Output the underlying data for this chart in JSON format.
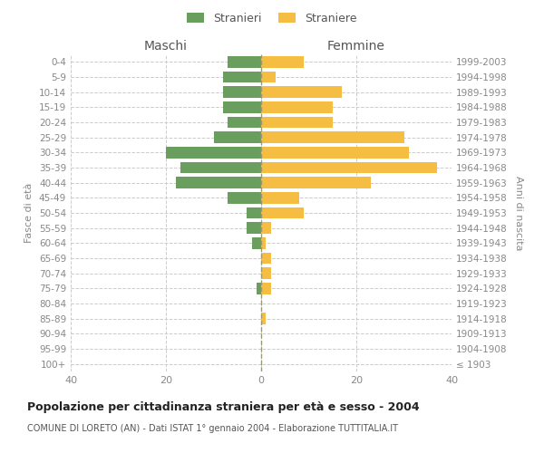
{
  "age_groups": [
    "100+",
    "95-99",
    "90-94",
    "85-89",
    "80-84",
    "75-79",
    "70-74",
    "65-69",
    "60-64",
    "55-59",
    "50-54",
    "45-49",
    "40-44",
    "35-39",
    "30-34",
    "25-29",
    "20-24",
    "15-19",
    "10-14",
    "5-9",
    "0-4"
  ],
  "birth_years": [
    "≤ 1903",
    "1904-1908",
    "1909-1913",
    "1914-1918",
    "1919-1923",
    "1924-1928",
    "1929-1933",
    "1934-1938",
    "1939-1943",
    "1944-1948",
    "1949-1953",
    "1954-1958",
    "1959-1963",
    "1964-1968",
    "1969-1973",
    "1974-1978",
    "1979-1983",
    "1984-1988",
    "1989-1993",
    "1994-1998",
    "1999-2003"
  ],
  "males": [
    0,
    0,
    0,
    0,
    0,
    1,
    0,
    0,
    2,
    3,
    3,
    7,
    18,
    17,
    20,
    10,
    7,
    8,
    8,
    8,
    7
  ],
  "females": [
    0,
    0,
    0,
    1,
    0,
    2,
    2,
    2,
    1,
    2,
    9,
    8,
    23,
    37,
    31,
    30,
    15,
    15,
    17,
    3,
    9
  ],
  "male_color": "#6a9e5f",
  "female_color": "#f5be42",
  "male_label": "Stranieri",
  "female_label": "Straniere",
  "title": "Popolazione per cittadinanza straniera per età e sesso - 2004",
  "subtitle": "COMUNE DI LORETO (AN) - Dati ISTAT 1° gennaio 2004 - Elaborazione TUTTITALIA.IT",
  "xlabel_left": "Maschi",
  "xlabel_right": "Femmine",
  "ylabel_left": "Fasce di età",
  "ylabel_right": "Anni di nascita",
  "xlim": 40,
  "background_color": "#ffffff",
  "grid_color": "#cccccc",
  "tick_color": "#888888",
  "bar_edge_color": "none",
  "center_line_color": "#999977",
  "center_line_style": "--"
}
